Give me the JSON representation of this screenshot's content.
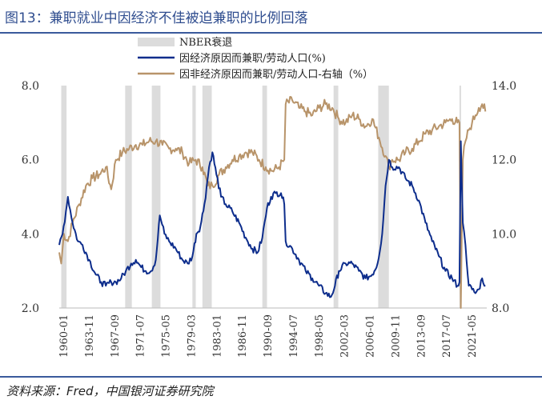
{
  "title": "图13：兼职就业中因经济不佳被迫兼职的比例回落",
  "source": "资料来源：Fred，中国银河证券研究院",
  "chart_data": {
    "type": "line",
    "x_tick_labels": [
      "1960-01",
      "1963-11",
      "1967-09",
      "1971-07",
      "1975-05",
      "1979-03",
      "1983-01",
      "1986-11",
      "1990-09",
      "1994-07",
      "1998-05",
      "2002-03",
      "2006-01",
      "2009-11",
      "2013-09",
      "2017-07",
      "2021-05"
    ],
    "x_range": [
      1960.0,
      2024.2
    ],
    "y_left": {
      "ticks": [
        "2.0",
        "4.0",
        "6.0",
        "8.0"
      ],
      "range": [
        2.0,
        8.0
      ]
    },
    "y_right": {
      "ticks": [
        "8.0",
        "10.0",
        "12.0",
        "14.0"
      ],
      "range": [
        8.0,
        14.0
      ]
    },
    "legend": {
      "position": "top-center",
      "items": [
        "NBER衰退",
        "因经济原因而兼职/劳动人口(%)",
        "因非经济原因而兼职/劳动人口-右轴（%）"
      ]
    },
    "colors": {
      "recession": "#dcdcdc",
      "economic": "#0d2d8c",
      "noneconomic": "#b8946a"
    },
    "recessions": [
      [
        1960.3,
        1961.1
      ],
      [
        1969.9,
        1970.9
      ],
      [
        1973.9,
        1975.2
      ],
      [
        1980.0,
        1980.5
      ],
      [
        1981.5,
        1982.9
      ],
      [
        1990.5,
        1991.2
      ],
      [
        2001.2,
        2001.9
      ],
      [
        2007.9,
        2009.5
      ],
      [
        2020.1,
        2020.3
      ]
    ],
    "series": [
      {
        "name": "因经济原因而兼职/劳动人口(%)",
        "axis": "left",
        "points": [
          [
            1960.0,
            3.7
          ],
          [
            1960.5,
            4.0
          ],
          [
            1961.0,
            4.6
          ],
          [
            1961.3,
            5.0
          ],
          [
            1962.0,
            4.3
          ],
          [
            1962.8,
            3.8
          ],
          [
            1963.5,
            3.7
          ],
          [
            1964.5,
            3.3
          ],
          [
            1965.5,
            2.9
          ],
          [
            1966.3,
            2.7
          ],
          [
            1967.0,
            2.6
          ],
          [
            1967.8,
            2.7
          ],
          [
            1968.5,
            2.7
          ],
          [
            1969.3,
            2.8
          ],
          [
            1970.0,
            3.0
          ],
          [
            1970.8,
            3.2
          ],
          [
            1971.5,
            3.3
          ],
          [
            1972.3,
            3.1
          ],
          [
            1973.0,
            3.0
          ],
          [
            1973.8,
            3.0
          ],
          [
            1974.5,
            3.3
          ],
          [
            1975.1,
            4.5
          ],
          [
            1975.8,
            4.0
          ],
          [
            1976.5,
            3.8
          ],
          [
            1977.5,
            3.6
          ],
          [
            1978.5,
            3.3
          ],
          [
            1979.3,
            3.2
          ],
          [
            1980.0,
            3.4
          ],
          [
            1980.6,
            4.0
          ],
          [
            1981.2,
            4.2
          ],
          [
            1981.8,
            4.8
          ],
          [
            1982.5,
            5.8
          ],
          [
            1983.0,
            6.2
          ],
          [
            1983.6,
            5.6
          ],
          [
            1984.3,
            5.0
          ],
          [
            1985.0,
            4.8
          ],
          [
            1986.0,
            4.6
          ],
          [
            1987.0,
            4.3
          ],
          [
            1988.0,
            3.9
          ],
          [
            1989.0,
            3.6
          ],
          [
            1989.8,
            3.5
          ],
          [
            1990.5,
            3.9
          ],
          [
            1991.2,
            4.7
          ],
          [
            1991.8,
            5.0
          ],
          [
            1992.5,
            5.1
          ],
          [
            1993.3,
            5.1
          ],
          [
            1993.8,
            4.8
          ],
          [
            1994.0,
            3.8
          ],
          [
            1995.0,
            3.6
          ],
          [
            1996.0,
            3.3
          ],
          [
            1997.0,
            3.0
          ],
          [
            1998.0,
            2.8
          ],
          [
            1999.0,
            2.6
          ],
          [
            2000.0,
            2.4
          ],
          [
            2000.8,
            2.3
          ],
          [
            2001.4,
            2.6
          ],
          [
            2002.0,
            3.0
          ],
          [
            2003.0,
            3.2
          ],
          [
            2004.0,
            3.2
          ],
          [
            2005.0,
            3.0
          ],
          [
            2006.0,
            2.8
          ],
          [
            2007.0,
            2.9
          ],
          [
            2007.8,
            3.2
          ],
          [
            2008.5,
            4.0
          ],
          [
            2009.0,
            5.3
          ],
          [
            2009.5,
            6.0
          ],
          [
            2010.0,
            5.8
          ],
          [
            2011.0,
            5.8
          ],
          [
            2012.0,
            5.5
          ],
          [
            2013.0,
            5.3
          ],
          [
            2014.0,
            4.9
          ],
          [
            2015.0,
            4.3
          ],
          [
            2016.0,
            3.8
          ],
          [
            2017.0,
            3.4
          ],
          [
            2018.0,
            3.0
          ],
          [
            2019.0,
            2.8
          ],
          [
            2019.8,
            2.6
          ],
          [
            2020.1,
            2.7
          ],
          [
            2020.3,
            6.5
          ],
          [
            2020.6,
            4.3
          ],
          [
            2021.0,
            3.7
          ],
          [
            2021.5,
            2.6
          ],
          [
            2022.0,
            2.5
          ],
          [
            2022.5,
            2.4
          ],
          [
            2023.0,
            2.5
          ],
          [
            2023.5,
            2.8
          ],
          [
            2024.0,
            2.6
          ]
        ]
      },
      {
        "name": "因非经济原因而兼职/劳动人口-右轴（%）",
        "axis": "right",
        "points": [
          [
            1960.0,
            9.5
          ],
          [
            1960.3,
            9.2
          ],
          [
            1960.7,
            10.0
          ],
          [
            1961.3,
            9.8
          ],
          [
            1962.0,
            10.3
          ],
          [
            1963.0,
            10.8
          ],
          [
            1964.0,
            11.3
          ],
          [
            1965.0,
            11.5
          ],
          [
            1966.0,
            11.6
          ],
          [
            1967.0,
            11.8
          ],
          [
            1967.8,
            11.2
          ],
          [
            1968.5,
            12.0
          ],
          [
            1969.5,
            12.2
          ],
          [
            1970.5,
            12.3
          ],
          [
            1971.5,
            12.4
          ],
          [
            1972.5,
            12.4
          ],
          [
            1973.5,
            12.5
          ],
          [
            1974.5,
            12.5
          ],
          [
            1975.5,
            12.4
          ],
          [
            1976.5,
            12.3
          ],
          [
            1977.5,
            12.3
          ],
          [
            1978.5,
            12.2
          ],
          [
            1979.5,
            11.9
          ],
          [
            1980.5,
            12.0
          ],
          [
            1981.5,
            11.8
          ],
          [
            1982.3,
            11.3
          ],
          [
            1983.0,
            11.3
          ],
          [
            1984.0,
            11.6
          ],
          [
            1985.0,
            11.8
          ],
          [
            1986.0,
            12.0
          ],
          [
            1987.0,
            12.1
          ],
          [
            1988.0,
            12.2
          ],
          [
            1989.0,
            12.2
          ],
          [
            1990.0,
            12.0
          ],
          [
            1991.0,
            11.8
          ],
          [
            1992.0,
            11.7
          ],
          [
            1993.0,
            11.8
          ],
          [
            1993.8,
            12.0
          ],
          [
            1994.0,
            13.5
          ],
          [
            1995.0,
            13.6
          ],
          [
            1996.0,
            13.4
          ],
          [
            1997.0,
            13.3
          ],
          [
            1998.0,
            13.2
          ],
          [
            1999.0,
            13.4
          ],
          [
            2000.0,
            13.5
          ],
          [
            2001.0,
            13.4
          ],
          [
            2002.0,
            13.1
          ],
          [
            2003.0,
            13.0
          ],
          [
            2004.0,
            13.2
          ],
          [
            2005.0,
            13.1
          ],
          [
            2006.0,
            12.9
          ],
          [
            2007.0,
            13.1
          ],
          [
            2008.0,
            12.6
          ],
          [
            2009.0,
            12.1
          ],
          [
            2009.5,
            11.8
          ],
          [
            2010.0,
            12.0
          ],
          [
            2011.0,
            12.0
          ],
          [
            2012.0,
            12.2
          ],
          [
            2013.0,
            12.3
          ],
          [
            2014.0,
            12.5
          ],
          [
            2015.0,
            12.7
          ],
          [
            2016.0,
            12.8
          ],
          [
            2017.0,
            12.9
          ],
          [
            2018.0,
            13.0
          ],
          [
            2019.0,
            13.1
          ],
          [
            2019.8,
            13.0
          ],
          [
            2020.1,
            13.0
          ],
          [
            2020.3,
            8.0
          ],
          [
            2020.6,
            12.0
          ],
          [
            2021.0,
            12.5
          ],
          [
            2021.5,
            12.8
          ],
          [
            2022.0,
            13.0
          ],
          [
            2022.5,
            13.2
          ],
          [
            2023.0,
            13.4
          ],
          [
            2023.5,
            13.5
          ],
          [
            2024.0,
            13.3
          ]
        ]
      }
    ]
  }
}
